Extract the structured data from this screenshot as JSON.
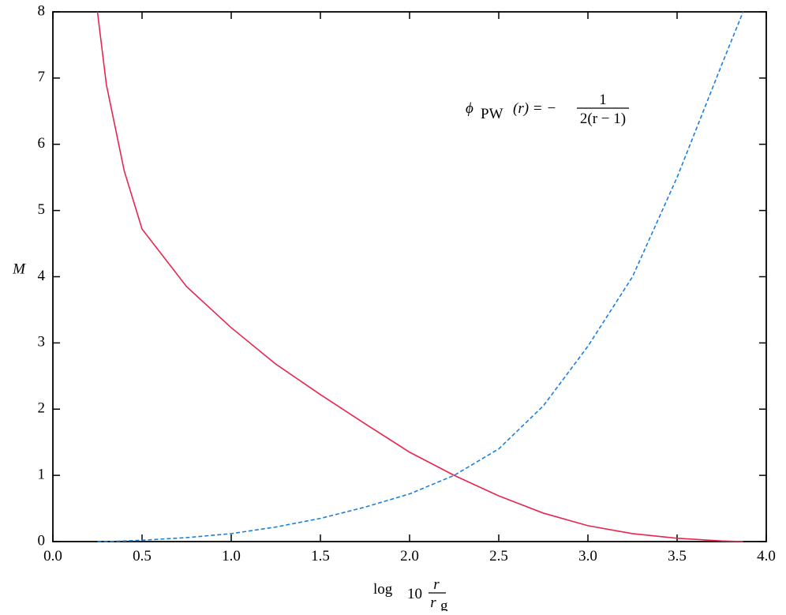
{
  "chart_data": {
    "type": "line",
    "y_label": "M",
    "x_label": {
      "main": "log",
      "sub": "10",
      "num": "r",
      "den": "r",
      "den_sub": "g"
    },
    "annotation": {
      "lhs": "ϕ",
      "lhs_sub": "PW",
      "lhs_arg": "(r) = −",
      "num": "1",
      "den": "2(r − 1)"
    },
    "x": [
      0.25,
      0.3,
      0.4,
      0.5,
      0.75,
      1.0,
      1.25,
      1.5,
      1.75,
      2.0,
      2.25,
      2.5,
      2.75,
      3.0,
      3.25,
      3.5,
      3.75,
      3.87
    ],
    "series": [
      {
        "color": "#e8254f",
        "dash": "solid",
        "values": [
          8.0,
          6.9,
          5.6,
          4.72,
          3.85,
          3.23,
          2.68,
          2.22,
          1.78,
          1.35,
          1.0,
          0.69,
          0.43,
          0.24,
          0.12,
          0.05,
          0.01,
          0.0
        ]
      },
      {
        "color": "#1a7fe0",
        "dash": "dashed",
        "values": [
          0.0,
          0.0,
          0.01,
          0.02,
          0.06,
          0.12,
          0.22,
          0.35,
          0.52,
          0.72,
          1.0,
          1.4,
          2.05,
          2.95,
          4.0,
          5.5,
          7.2,
          8.0
        ]
      }
    ],
    "xlim": [
      0,
      4
    ],
    "ylim": [
      0,
      8
    ],
    "xticks": [
      {
        "value": 0,
        "label": "0.0"
      },
      0.5,
      {
        "value": 1,
        "label": "1.0"
      },
      1.5,
      {
        "value": 2,
        "label": "2.0"
      },
      2.5,
      {
        "value": 3,
        "label": "3.0"
      },
      3.5,
      {
        "value": 4,
        "label": "4.0"
      }
    ],
    "yticks": [
      0,
      1,
      2,
      3,
      4,
      5,
      6,
      7,
      8
    ]
  }
}
